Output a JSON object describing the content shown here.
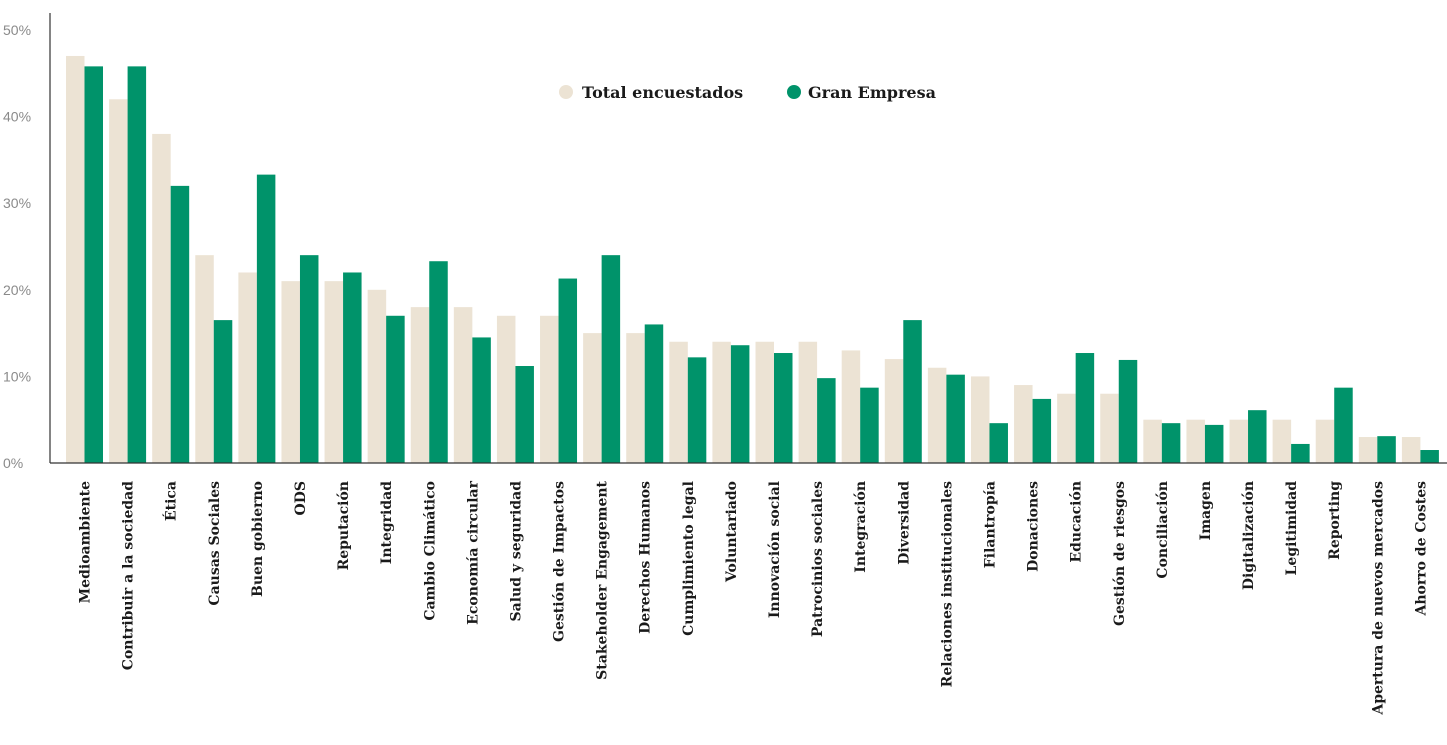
{
  "chart_data": {
    "type": "bar",
    "title": "",
    "xlabel": "",
    "ylabel": "",
    "ylim": [
      0,
      50
    ],
    "yticks": [
      "0%",
      "10%",
      "20%",
      "30%",
      "40%",
      "50%"
    ],
    "ytick_values": [
      0,
      10,
      20,
      30,
      40,
      50
    ],
    "grid": false,
    "legend_position": "top-center",
    "categories": [
      "Medioambiente",
      "Contribuir a la sociedad",
      "Ética",
      "Causas Sociales",
      "Buen gobierno",
      "ODS",
      "Reputación",
      "Integridad",
      "Cambio Climático",
      "Economía circular",
      "Salud y seguridad",
      "Gestión de Impactos",
      "Stakeholder Engagement",
      "Derechos Humanos",
      "Cumplimiento legal",
      "Voluntariado",
      "Innovación social",
      "Patrocinios sociales",
      "Integración",
      "Diversidad",
      "Relaciones institucionales",
      "Filantropía",
      "Donaciones",
      "Educación",
      "Gestión de riesgos",
      "Conciliación",
      "Imagen",
      "Digitalización",
      "Legitimidad",
      "Reporting",
      "Apertura de nuevos mercados",
      "Ahorro de Costes"
    ],
    "series": [
      {
        "name": "Total encuestados",
        "color": "#ece3d4",
        "values": [
          47,
          42,
          38,
          24,
          22,
          21,
          21,
          20,
          18,
          18,
          17,
          17,
          15,
          15,
          14,
          14,
          14,
          14,
          13,
          12,
          11,
          10,
          9,
          8,
          8,
          5,
          5,
          5,
          5,
          5,
          3,
          3
        ]
      },
      {
        "name": "Gran Empresa",
        "color": "#00936a",
        "values": [
          45.8,
          45.8,
          32,
          16.5,
          33.3,
          24,
          22,
          17,
          23.3,
          14.5,
          11.2,
          21.3,
          24,
          16,
          12.2,
          13.6,
          12.7,
          9.8,
          8.7,
          16.5,
          10.2,
          4.6,
          7.4,
          12.7,
          11.9,
          4.6,
          4.4,
          6.1,
          2.2,
          8.7,
          3.1,
          1.5
        ]
      }
    ]
  }
}
